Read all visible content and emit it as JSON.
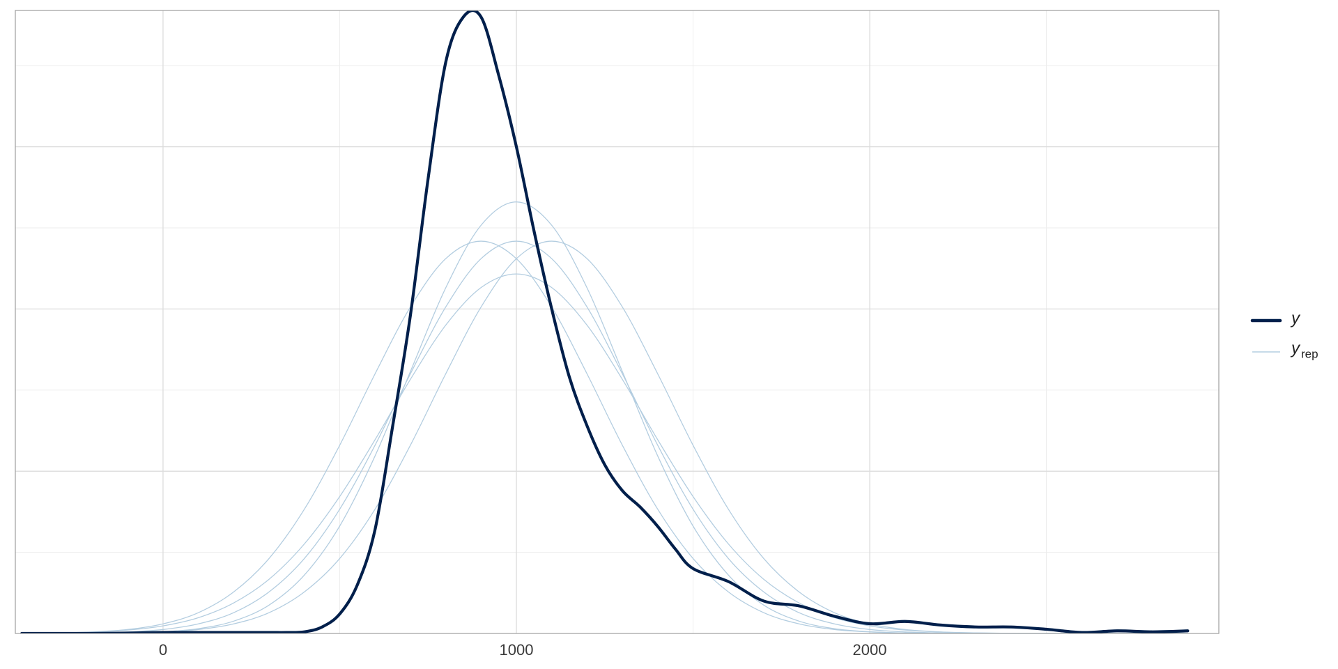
{
  "chart_data": {
    "type": "density",
    "xlim": [
      -418,
      2988
    ],
    "xticks": [
      0,
      1000,
      2000
    ],
    "x_minor_gridlines": [
      500,
      1500,
      2500
    ],
    "ylim": [
      0,
      0.00192
    ],
    "y_gridlines": [
      0.0005,
      0.001,
      0.0015
    ],
    "y_minor_gridlines": [
      0.00025,
      0.00075,
      0.00125,
      0.00175
    ],
    "grid": true,
    "legend": "right",
    "x": [
      -400,
      -300,
      -200,
      -100,
      0,
      100,
      200,
      300,
      350,
      400,
      450,
      500,
      550,
      600,
      650,
      700,
      750,
      800,
      850,
      900,
      950,
      1000,
      1050,
      1100,
      1150,
      1200,
      1250,
      1300,
      1350,
      1400,
      1450,
      1500,
      1600,
      1700,
      1800,
      1900,
      2000,
      2100,
      2200,
      2300,
      2400,
      2500,
      2600,
      2700,
      2800,
      2900
    ],
    "series": [
      {
        "name": "y",
        "color": "#011f4b",
        "values": [
          0,
          0,
          0,
          1e-06,
          3e-06,
          3e-06,
          3e-06,
          3e-06,
          3e-06,
          5e-06,
          2e-05,
          6e-05,
          0.00015,
          0.00032,
          0.00064,
          0.00098,
          0.0014,
          0.00176,
          0.0019,
          0.0019,
          0.00172,
          0.0015,
          0.00124,
          0.001,
          0.00079,
          0.00064,
          0.00052,
          0.00044,
          0.00039,
          0.00033,
          0.00026,
          0.0002,
          0.00016,
          0.0001,
          8.5e-05,
          5.3e-05,
          3e-05,
          3.7e-05,
          2.6e-05,
          2e-05,
          2e-05,
          1.3e-05,
          3e-06,
          8e-06,
          5e-06,
          8e-06
        ]
      }
    ],
    "replicates": {
      "name": "y",
      "name_subscript": "rep",
      "color": "#b3cde0",
      "x": [
        -400,
        -300,
        -200,
        -100,
        0,
        100,
        200,
        300,
        400,
        500,
        600,
        700,
        800,
        900,
        1000,
        1100,
        1200,
        1300,
        1400,
        1500,
        1600,
        1700,
        1800,
        1900,
        2000,
        2100,
        2200,
        2300,
        2400,
        2500,
        2600,
        2700,
        2800,
        2900
      ],
      "series": [
        [
          1e-07,
          5e-07,
          1.6e-06,
          4.7e-06,
          1.22e-05,
          2.96e-05,
          6.4e-05,
          0.000128,
          0.000231,
          0.000383,
          0.00058,
          0.0008,
          0.001006,
          0.001155,
          0.001209,
          0.001155,
          0.001006,
          0.0008,
          0.00058,
          0.000383,
          0.000231,
          0.000128,
          6.4e-05,
          2.96e-05,
          1.22e-05,
          4.7e-06,
          1.6e-06,
          5e-07,
          1e-07,
          0,
          0,
          0,
          0,
          0
        ],
        [
          0,
          1e-07,
          5e-07,
          1.6e-06,
          4.7e-06,
          1.22e-05,
          2.96e-05,
          6.4e-05,
          0.000128,
          0.000231,
          0.000383,
          0.00058,
          0.0008,
          0.001006,
          0.001155,
          0.001209,
          0.001155,
          0.001006,
          0.0008,
          0.00058,
          0.000383,
          0.000231,
          0.000128,
          6.4e-05,
          2.96e-05,
          1.22e-05,
          4.7e-06,
          1.6e-06,
          5e-07,
          1e-07,
          0,
          0,
          0,
          0
        ],
        [
          5e-07,
          1.6e-06,
          4.7e-06,
          1.22e-05,
          2.96e-05,
          6.4e-05,
          0.000128,
          0.000231,
          0.000383,
          0.00058,
          0.0008,
          0.001006,
          0.001155,
          0.001209,
          0.001155,
          0.001006,
          0.0008,
          0.00058,
          0.000383,
          0.000231,
          0.000128,
          6.4e-05,
          2.96e-05,
          1.22e-05,
          4.7e-06,
          1.6e-06,
          5e-07,
          1e-07,
          0,
          0,
          0,
          0,
          0,
          0
        ],
        [
          0,
          0,
          4e-07,
          1.6e-06,
          5.2e-06,
          1.48e-05,
          3.8e-05,
          8.74e-05,
          0.00018,
          0.000331,
          0.000547,
          0.000807,
          0.001065,
          0.001258,
          0.00133,
          0.001258,
          0.001065,
          0.000807,
          0.000547,
          0.000331,
          0.00018,
          8.74e-05,
          3.8e-05,
          1.48e-05,
          5.2e-06,
          1.6e-06,
          4e-07,
          0,
          0,
          0,
          0,
          0,
          0,
          0
        ],
        [
          6e-07,
          1.7e-06,
          4.3e-06,
          1.04e-05,
          2.34e-05,
          4.86e-05,
          9.41e-05,
          0.000167,
          0.000276,
          0.000422,
          0.000597,
          0.000783,
          0.00095,
          0.001066,
          0.001108,
          0.001066,
          0.00095,
          0.000783,
          0.000597,
          0.000422,
          0.000276,
          0.000167,
          9.41e-05,
          4.86e-05,
          2.34e-05,
          1.04e-05,
          4.3e-06,
          1.7e-06,
          6e-07,
          0,
          0,
          0,
          0,
          0
        ]
      ]
    }
  }
}
